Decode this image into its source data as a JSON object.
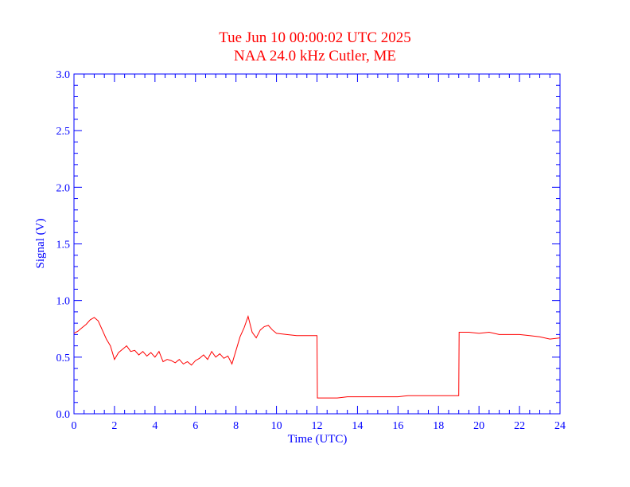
{
  "colors": {
    "axis": "#0000ff",
    "title": "#ff0000",
    "line": "#ff0000",
    "background": "#ffffff"
  },
  "chart_data": {
    "type": "line",
    "title": "Tue Jun 10 00:00:02 UTC 2025",
    "subtitle": "NAA 24.0 kHz Cutler, ME",
    "xlabel": "Time (UTC)",
    "ylabel": "Signal (V)",
    "xlim": [
      0,
      24
    ],
    "ylim": [
      0,
      3
    ],
    "xticks": [
      0,
      2,
      4,
      6,
      8,
      10,
      12,
      14,
      16,
      18,
      20,
      22,
      24
    ],
    "yticks": [
      "0.0",
      "0.5",
      "1.0",
      "1.5",
      "2.0",
      "2.5",
      "3.0"
    ],
    "grid": false,
    "series": [
      {
        "x": [
          0,
          0.2,
          0.4,
          0.6,
          0.8,
          1.0,
          1.2,
          1.4,
          1.6,
          1.8,
          2.0,
          2.2,
          2.4,
          2.6,
          2.8,
          3.0,
          3.2,
          3.4,
          3.6,
          3.8,
          4.0,
          4.2,
          4.4,
          4.6,
          4.8,
          5.0,
          5.2,
          5.4,
          5.6,
          5.8,
          6.0,
          6.2,
          6.4,
          6.6,
          6.8,
          7.0,
          7.2,
          7.4,
          7.6,
          7.8,
          8.0,
          8.2,
          8.4,
          8.6,
          8.8,
          9.0,
          9.2,
          9.4,
          9.6,
          9.8,
          10.0,
          10.5,
          11.0,
          11.5,
          12.0,
          12.02,
          12.5,
          13.0,
          13.5,
          14.0,
          14.5,
          15.0,
          15.5,
          16.0,
          16.5,
          17.0,
          17.5,
          18.0,
          18.5,
          19.0,
          19.02,
          19.2,
          19.5,
          20.0,
          20.5,
          21.0,
          21.5,
          22.0,
          22.5,
          23.0,
          23.5,
          24.0
        ],
        "y": [
          0.71,
          0.73,
          0.76,
          0.79,
          0.83,
          0.85,
          0.82,
          0.74,
          0.66,
          0.6,
          0.48,
          0.54,
          0.57,
          0.6,
          0.55,
          0.56,
          0.52,
          0.55,
          0.51,
          0.54,
          0.5,
          0.55,
          0.46,
          0.48,
          0.47,
          0.45,
          0.48,
          0.44,
          0.46,
          0.43,
          0.47,
          0.49,
          0.52,
          0.48,
          0.55,
          0.5,
          0.53,
          0.49,
          0.51,
          0.44,
          0.56,
          0.68,
          0.76,
          0.86,
          0.72,
          0.67,
          0.74,
          0.77,
          0.78,
          0.74,
          0.71,
          0.7,
          0.69,
          0.69,
          0.69,
          0.14,
          0.14,
          0.14,
          0.15,
          0.15,
          0.15,
          0.15,
          0.15,
          0.15,
          0.16,
          0.16,
          0.16,
          0.16,
          0.16,
          0.16,
          0.72,
          0.72,
          0.72,
          0.71,
          0.72,
          0.7,
          0.7,
          0.7,
          0.69,
          0.68,
          0.66,
          0.67
        ]
      }
    ]
  }
}
